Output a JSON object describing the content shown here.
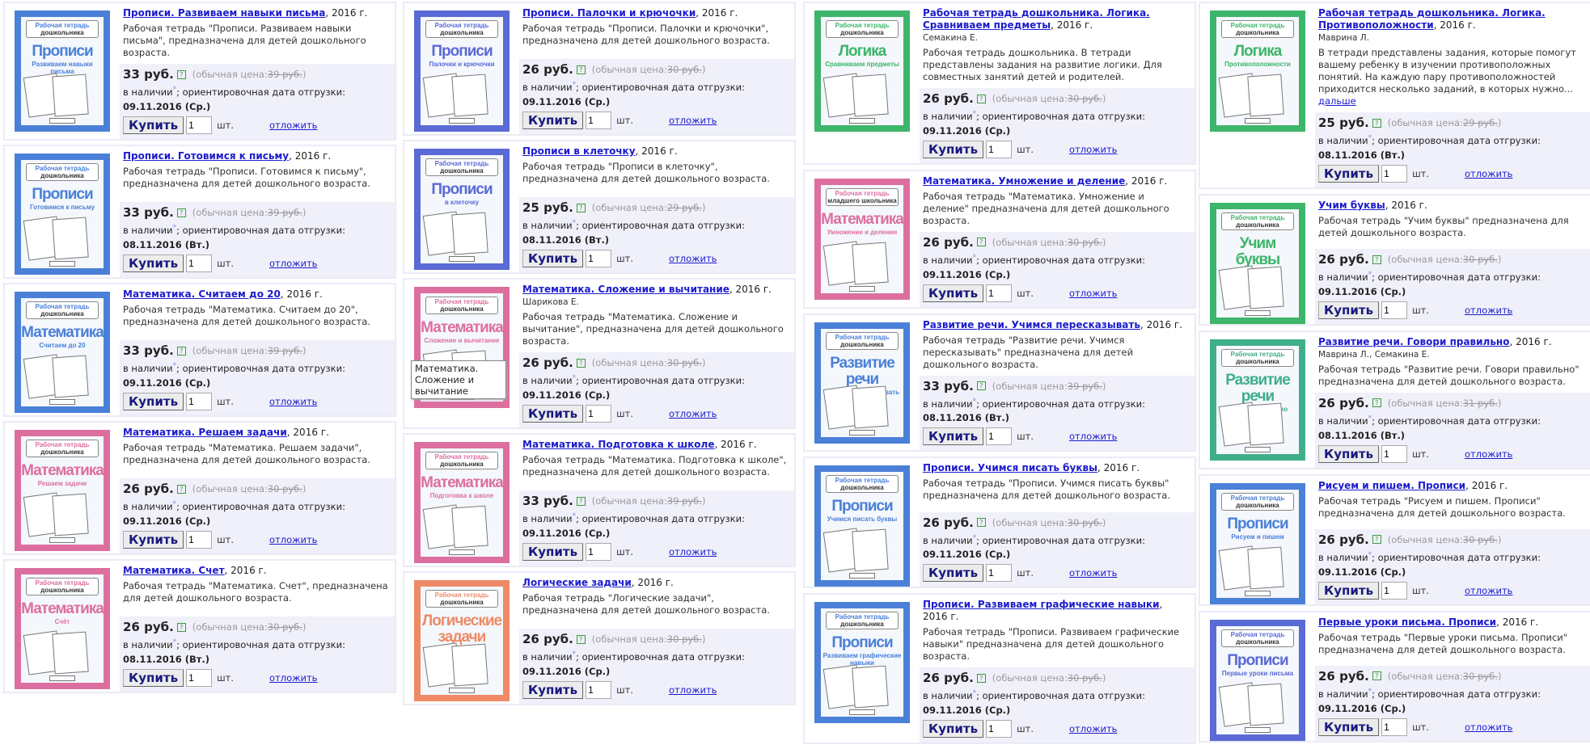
{
  "labels": {
    "year_suffix": ", 2016 г.",
    "currency": "руб.",
    "help_glyph": "?",
    "regular_price_prefix": "(обычная цена: ",
    "regular_price_suffix": ")",
    "in_stock": "в наличии",
    "asterisk": "*",
    "shipping_prefix": "; ориентировочная дата отгрузки: ",
    "buy_button": "Купить",
    "unit": "шт.",
    "postpone": "отложить",
    "cover_header_line1": "Рабочая тетрадь",
    "cover_header_line2": "дошкольника"
  },
  "colors": {
    "blue": "#4a80d8",
    "indigo": "#5a6ad6",
    "pink": "#dc6fa0",
    "green": "#3db56a",
    "teal": "#3fae8a",
    "orange": "#ee8a66",
    "link": "#1c1ccc"
  },
  "tooltip": "Математика. Сложение и вычитание",
  "columns": [
    [
      {
        "title": "Прописи. Развиваем навыки письма",
        "desc": "Рабочая тетрадь \"Прописи. Развиваем навыки письма\", предназначена для детей дошкольного возраста.",
        "price": "33",
        "old_price": "39 руб.",
        "qty": "1",
        "date": "09.11.2016 (Ср.)",
        "cover": {
          "color": "blue",
          "big": "Прописи",
          "sub": "Развиваем навыки письма"
        }
      },
      {
        "title": "Прописи. Готовимся к письму",
        "desc": "Рабочая тетрадь \"Прописи. Готовимся к письму\", предназначена для детей дошкольного возраста.",
        "price": "33",
        "old_price": "39 руб.",
        "qty": "1",
        "date": "08.11.2016 (Вт.)",
        "cover": {
          "color": "blue",
          "big": "Прописи",
          "sub": "Готовимся к письму"
        }
      },
      {
        "title": "Математика. Считаем до 20",
        "desc": "Рабочая тетрадь \"Математика. Считаем до 20\", предназначена для детей дошкольного возраста.",
        "price": "33",
        "old_price": "39 руб.",
        "qty": "1",
        "date": "09.11.2016 (Ср.)",
        "cover": {
          "color": "blue",
          "big": "Математика",
          "sub": "Считаем до 20"
        }
      },
      {
        "title": "Математика. Решаем задачи",
        "desc": "Рабочая тетрадь \"Математика. Решаем задачи\", предназначена для детей дошкольного возраста.",
        "price": "26",
        "old_price": "30 руб.",
        "qty": "1",
        "date": "09.11.2016 (Ср.)",
        "cover": {
          "color": "pink",
          "big": "Математика",
          "sub": "Решаем задачи"
        }
      },
      {
        "title": "Математика. Счет",
        "desc": "Рабочая тетрадь \"Математика. Счет\", предназначена для детей дошкольного возраста.",
        "price": "26",
        "old_price": "30 руб.",
        "qty": "1",
        "date": "08.11.2016 (Вт.)",
        "cover": {
          "color": "pink",
          "big": "Математика",
          "sub": "Счёт"
        }
      }
    ],
    [
      {
        "title": "Прописи. Палочки и крючочки",
        "desc": "Рабочая тетрадь \"Прописи. Палочки и крючочки\", предназначена для детей дошкольного возраста.",
        "price": "26",
        "old_price": "30 руб.",
        "qty": "1",
        "date": "09.11.2016 (Ср.)",
        "cover": {
          "color": "indigo",
          "big": "Прописи",
          "sub": "Палочки и крючочки"
        }
      },
      {
        "title": "Прописи в клеточку",
        "desc": "Рабочая тетрадь \"Прописи в клеточку\", предназначена для детей дошкольного возраста.",
        "price": "25",
        "old_price": "29 руб.",
        "qty": "1",
        "date": "08.11.2016 (Вт.)",
        "cover": {
          "color": "indigo",
          "big": "Прописи",
          "sub": "в клеточку"
        }
      },
      {
        "title": "Математика. Сложение и вычитание",
        "author": "Шарикова Е.",
        "desc": "Рабочая тетрадь \"Математика. Сложение и вычитание\", предназначена для детей дошкольного возраста.",
        "price": "26",
        "old_price": "30 руб.",
        "qty": "1",
        "date": "09.11.2016 (Ср.)",
        "cover": {
          "color": "pink",
          "big": "Математика",
          "sub": "Сложение и вычитание"
        }
      },
      {
        "title": "Математика. Подготовка к школе",
        "desc": "Рабочая тетрадь \"Математика. Подготовка к школе\", предназначена для детей дошкольного возраста.",
        "price": "33",
        "old_price": "39 руб.",
        "qty": "1",
        "date": "09.11.2016 (Ср.)",
        "cover": {
          "color": "pink",
          "big": "Математика",
          "sub": "Подготовка к школе"
        }
      },
      {
        "title": "Логические задачи",
        "desc": "Рабочая тетрадь \"Логические задачи\", предназначена для детей дошкольного возраста.",
        "price": "26",
        "old_price": "30 руб.",
        "qty": "1",
        "date": "09.11.2016 (Ср.)",
        "cover": {
          "color": "orange",
          "big": "Логические задачи",
          "sub": ""
        }
      }
    ],
    [
      {
        "title": "Рабочая тетрадь дошкольника. Логика. Сравниваем предметы",
        "author": "Семакина Е.",
        "desc": "Рабочая тетрадь дошкольника. В тетради представлены задания на развитие логики. Для совместных занятий детей и родителей.",
        "price": "26",
        "old_price": "30 руб.",
        "qty": "1",
        "date": "09.11.2016 (Ср.)",
        "cover": {
          "color": "green",
          "big": "Логика",
          "sub": "Сравниваем предметы"
        }
      },
      {
        "title": "Математика. Умножение и деление",
        "desc": "Рабочая тетрадь \"Математика. Умножение и деление\" предназначена для детей дошкольного возраста.",
        "price": "26",
        "old_price": "30 руб.",
        "qty": "1",
        "date": "09.11.2016 (Ср.)",
        "cover": {
          "color": "pink",
          "big": "Математика",
          "sub": "Умножение и деление",
          "hdr2": "младшего школьника"
        }
      },
      {
        "title": "Развитие речи. Учимся пересказывать",
        "desc": "Рабочая тетрадь \"Развитие речи. Учимся пересказывать\" предназначена для детей дошкольного возраста.",
        "price": "33",
        "old_price": "39 руб.",
        "qty": "1",
        "date": "08.11.2016 (Вт.)",
        "cover": {
          "color": "blue",
          "big": "Развитие речи",
          "sub": "Учимся пересказывать"
        }
      },
      {
        "title": "Прописи. Учимся писать буквы",
        "desc": "Рабочая тетрадь \"Прописи. Учимся писать буквы\" предназначена для детей дошкольного возраста.",
        "price": "26",
        "old_price": "30 руб.",
        "qty": "1",
        "date": "09.11.2016 (Ср.)",
        "cover": {
          "color": "blue",
          "big": "Прописи",
          "sub": "Учимся писать буквы"
        }
      },
      {
        "title": "Прописи. Развиваем графические навыки",
        "desc": "Рабочая тетрадь \"Прописи. Развиваем графические навыки\" предназначена для детей дошкольного возраста.",
        "price": "26",
        "old_price": "30 руб.",
        "qty": "1",
        "date": "09.11.2016 (Ср.)",
        "cover": {
          "color": "blue",
          "big": "Прописи",
          "sub": "Развиваем графические навыки"
        }
      }
    ],
    [
      {
        "title": "Рабочая тетрадь дошкольника. Логика. Противоположности",
        "author": "Маврина Л.",
        "desc": "В тетради представлены задания, которые помогут вашему ребенку в изучении противоположных понятий. На каждую пару противоположностей приходится несколько заданий, в которых нужно...",
        "more": "дальше",
        "price": "25",
        "old_price": "29 руб.",
        "qty": "1",
        "date": "08.11.2016 (Вт.)",
        "cover": {
          "color": "green",
          "big": "Логика",
          "sub": "Противоположности"
        }
      },
      {
        "title": "Учим буквы",
        "desc": "Рабочая тетрадь \"Учим буквы\" предназначена для детей дошкольного возраста.",
        "price": "26",
        "old_price": "30 руб.",
        "qty": "1",
        "date": "09.11.2016 (Ср.)",
        "cover": {
          "color": "green",
          "big": "Учим буквы",
          "sub": ""
        }
      },
      {
        "title": "Развитие речи. Говори правильно",
        "author": "Маврина Л., Семакина Е.",
        "desc": "Рабочая тетрадь \"Развитие речи. Говори правильно\" предназначена для детей дошкольного возраста.",
        "price": "26",
        "old_price": "31 руб.",
        "qty": "1",
        "date": "08.11.2016 (Вт.)",
        "cover": {
          "color": "teal",
          "big": "Развитие речи",
          "sub": "Говори правильно"
        }
      },
      {
        "title": "Рисуем и пишем. Прописи",
        "desc": "Рабочая тетрадь \"Рисуем и пишем. Прописи\" предназначена для детей дошкольного возраста.",
        "price": "26",
        "old_price": "30 руб.",
        "qty": "1",
        "date": "09.11.2016 (Ср.)",
        "cover": {
          "color": "blue",
          "big": "Прописи",
          "sub": "Рисуем и пишем"
        }
      },
      {
        "title": "Первые уроки письма. Прописи",
        "desc": "Рабочая тетрадь \"Первые уроки письма. Прописи\" предназначена для детей дошкольного возраста.",
        "price": "26",
        "old_price": "30 руб.",
        "qty": "1",
        "date": "09.11.2016 (Ср.)",
        "cover": {
          "color": "indigo",
          "big": "Прописи",
          "sub": "Первые уроки письма"
        }
      }
    ]
  ]
}
